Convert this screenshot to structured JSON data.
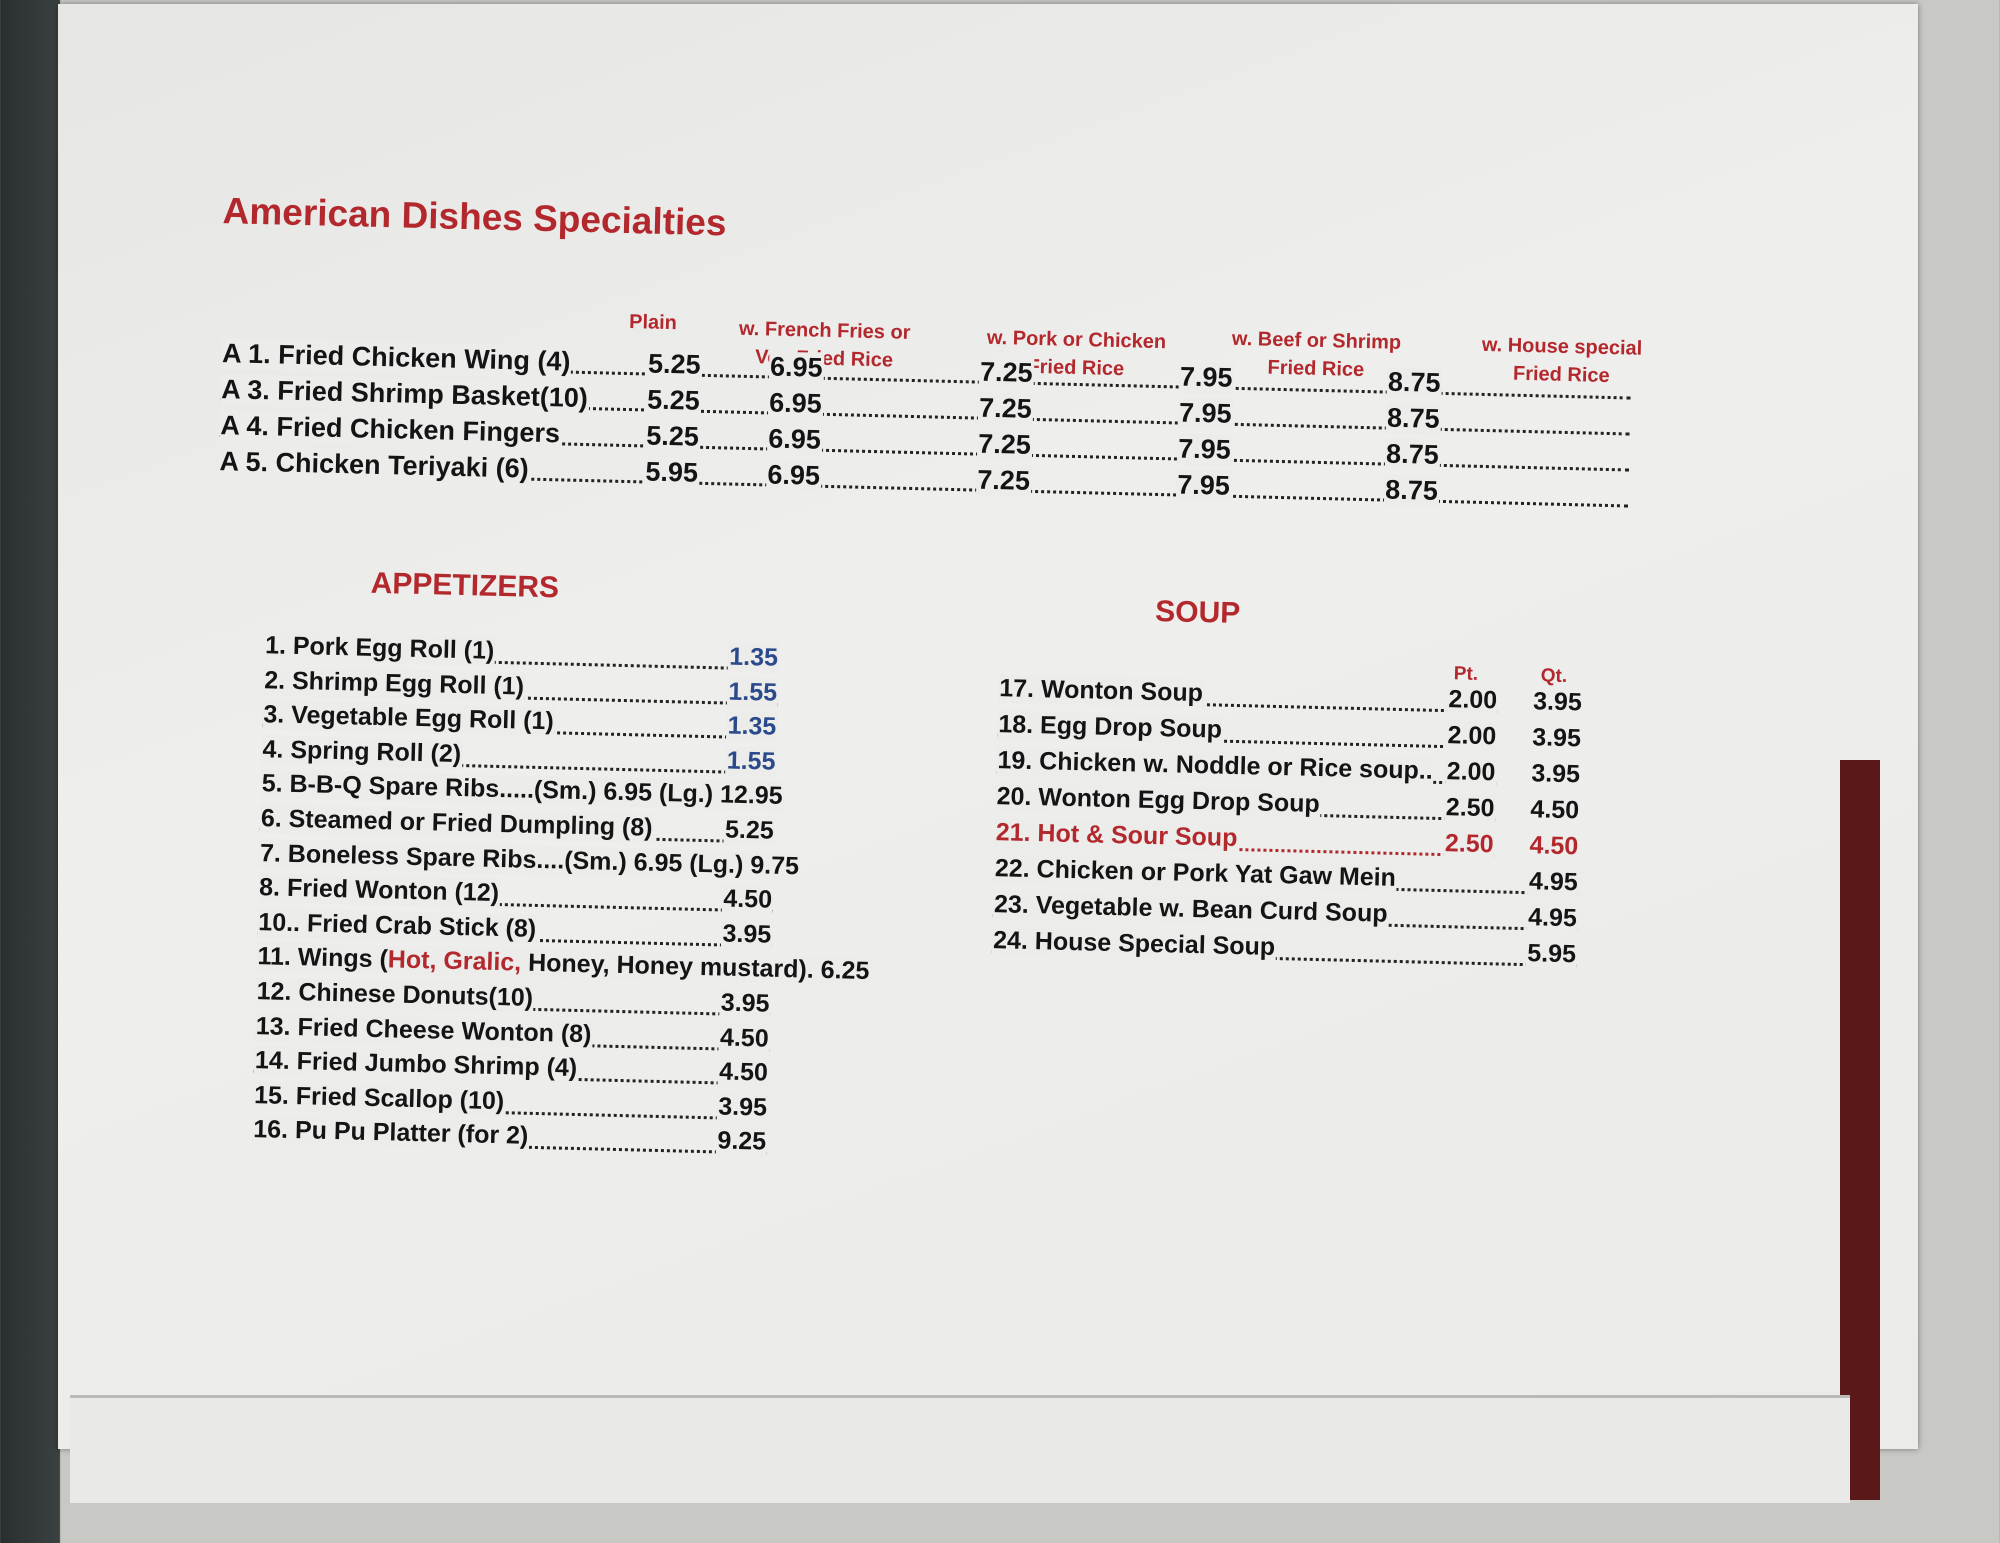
{
  "title": "American Dishes Specialties",
  "american": {
    "headers": [
      "Plain",
      "w. French Fries or",
      "Veg Fried Rice",
      "w. Pork or Chicken",
      "Fried Rice",
      "w. Beef or Shrimp",
      "Fried Rice",
      "w. House special",
      "Fried Rice"
    ],
    "rows": [
      {
        "code": "A 1.",
        "name": "Fried Chicken Wing (4)",
        "prices": [
          "5.25",
          "6.95",
          "7.25",
          "7.95",
          "8.75"
        ]
      },
      {
        "code": "A 3.",
        "name": "Fried Shrimp Basket(10)",
        "prices": [
          "5.25",
          "6.95",
          "7.25",
          "7.95",
          "8.75"
        ]
      },
      {
        "code": "A 4.",
        "name": "Fried Chicken Fingers",
        "prices": [
          "5.25",
          "6.95",
          "7.25",
          "7.95",
          "8.75"
        ]
      },
      {
        "code": "A 5.",
        "name": "Chicken Teriyaki (6)",
        "prices": [
          "5.95",
          "6.95",
          "7.25",
          "7.95",
          "8.75"
        ]
      }
    ]
  },
  "appetizers": {
    "heading": "APPETIZERS",
    "items": [
      {
        "num": "1.",
        "name": "Pork Egg Roll (1)",
        "price": "1.35"
      },
      {
        "num": "2.",
        "name": "Shrimp Egg Roll (1)",
        "price": "1.55"
      },
      {
        "num": "3.",
        "name": "Vegetable Egg Roll (1)",
        "price": "1.35"
      },
      {
        "num": "4.",
        "name": "Spring Roll (2)",
        "price": "1.55"
      },
      {
        "num": "5.",
        "name": "B-B-Q Spare Ribs.....(Sm.) 6.95 (Lg.) 12.95",
        "price": ""
      },
      {
        "num": "6.",
        "name": "Steamed or Fried Dumpling (8)",
        "price": "5.25"
      },
      {
        "num": "7.",
        "name": "Boneless Spare Ribs....(Sm.) 6.95 (Lg.) 9.75",
        "price": ""
      },
      {
        "num": "8.",
        "name": "Fried Wonton (12)",
        "price": "4.50"
      },
      {
        "num": "10..",
        "name": "Fried Crab Stick (8)",
        "price": "3.95"
      },
      {
        "num": "11.",
        "name": "Wings (",
        "hot": "Hot, Gralic,",
        "rest": " Honey, Honey mustard). 6.25",
        "price": ""
      },
      {
        "num": "12.",
        "name": "Chinese Donuts(10)",
        "price": "3.95"
      },
      {
        "num": "13.",
        "name": "Fried Cheese Wonton (8)",
        "price": "4.50"
      },
      {
        "num": "14.",
        "name": "Fried Jumbo Shrimp (4)",
        "price": "4.50"
      },
      {
        "num": "15.",
        "name": "Fried Scallop (10)",
        "price": "3.95"
      },
      {
        "num": "16.",
        "name": "Pu Pu Platter (for 2)",
        "price": "9.25"
      }
    ]
  },
  "soup": {
    "heading": "SOUP",
    "pt_label": "Pt.",
    "qt_label": "Qt.",
    "items": [
      {
        "num": "17.",
        "name": "Wonton Soup",
        "pt": "2.00",
        "qt": "3.95"
      },
      {
        "num": "18.",
        "name": "Egg Drop Soup",
        "pt": "2.00",
        "qt": "3.95"
      },
      {
        "num": "19.",
        "name": "Chicken w. Noddle or Rice soup..",
        "pt": "2.00",
        "qt": "3.95"
      },
      {
        "num": "20.",
        "name": "Wonton Egg Drop Soup",
        "pt": "2.50",
        "qt": "4.50"
      },
      {
        "num": "21.",
        "name": "Hot & Sour Soup",
        "pt": "2.50",
        "qt": "4.50",
        "highlight": true
      },
      {
        "num": "22.",
        "name": "Chicken or Pork Yat Gaw Mein",
        "price": "4.95"
      },
      {
        "num": "23.",
        "name": "Vegetable w. Bean Curd Soup",
        "price": "4.95"
      },
      {
        "num": "24.",
        "name": "House Special Soup",
        "price": "5.95"
      }
    ]
  },
  "colors": {
    "heading_red": "#b3282d",
    "text": "#141414",
    "blue_price": "#2b4a8c"
  }
}
